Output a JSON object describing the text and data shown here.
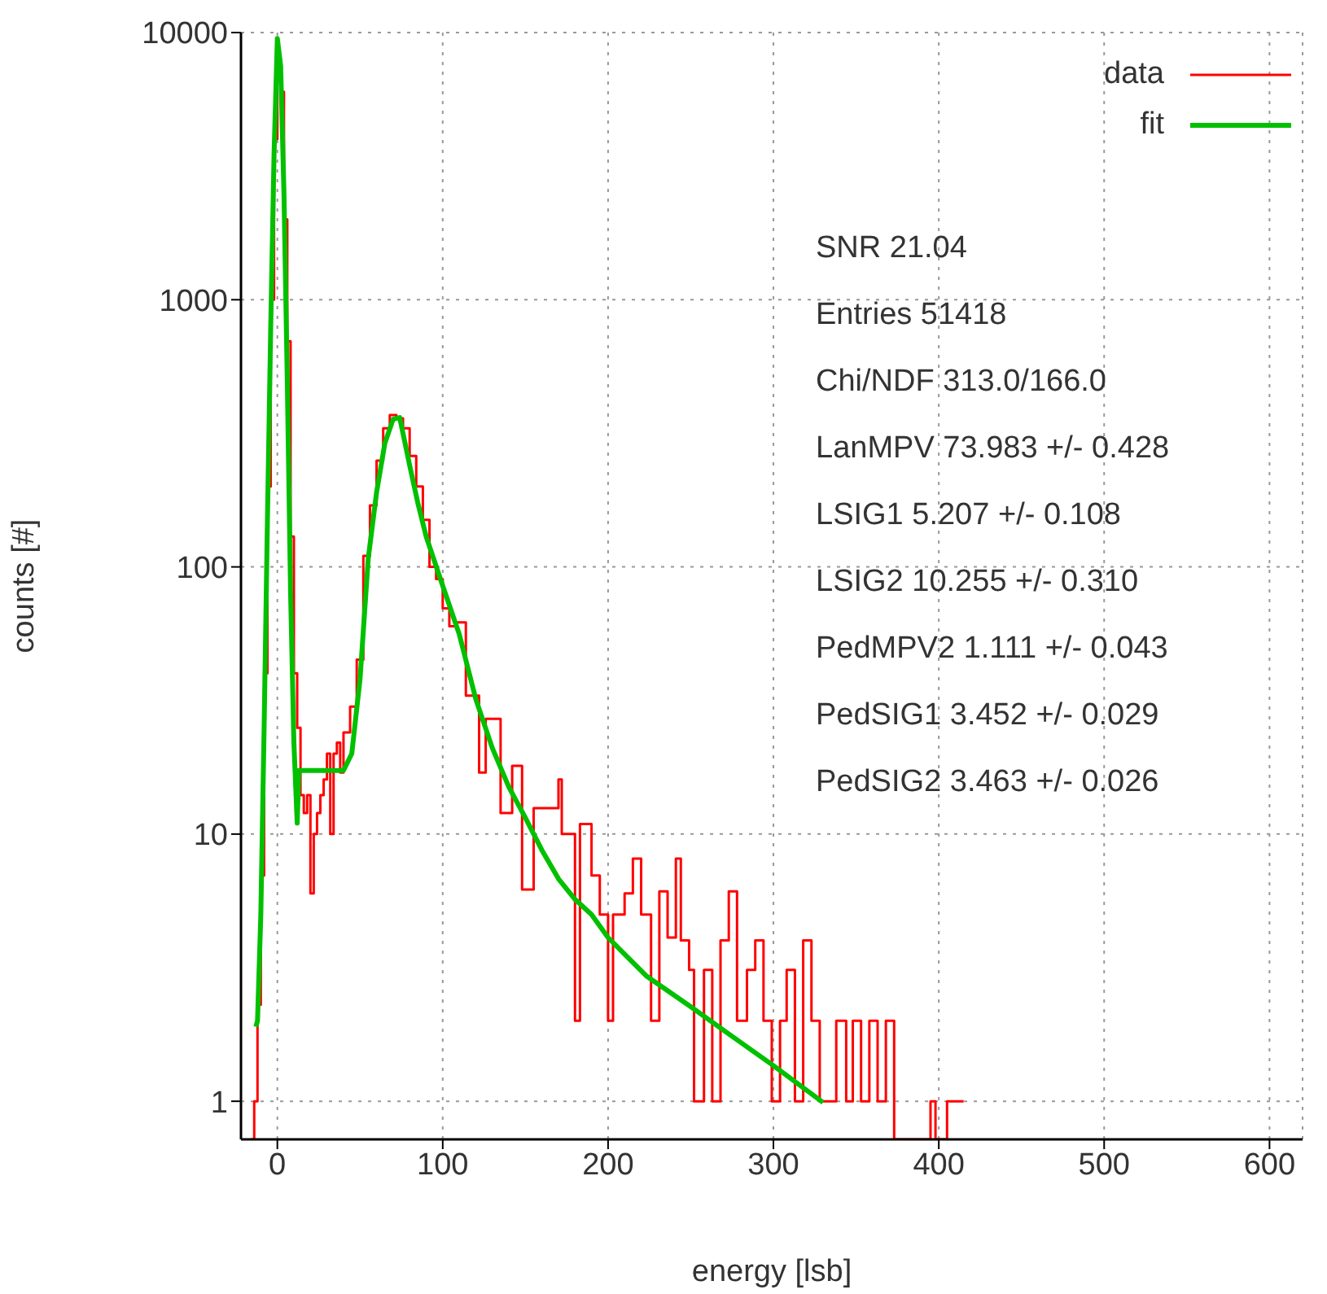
{
  "chart_data": {
    "type": "histogram",
    "xlabel": "energy [lsb]",
    "ylabel": "counts [#]",
    "xlim": [
      -22,
      620
    ],
    "xticks": [
      0,
      100,
      200,
      300,
      400,
      500,
      600
    ],
    "ylim": [
      0.72,
      10000
    ],
    "yticks": [
      1,
      10,
      100,
      1000,
      10000
    ],
    "log": "y",
    "grid": true,
    "legend": "top right",
    "annotations": [
      "SNR 21.04",
      "Entries 51418",
      "Chi/NDF 313.0/166.0",
      "LanMPV 73.983 +/- 0.428",
      "LSIG1 5.207 +/- 0.108",
      "LSIG2 10.255 +/- 0.310",
      "PedMPV2 1.111 +/- 0.043",
      "PedSIG1 3.452 +/- 0.029",
      "PedSIG2 3.463 +/- 0.026"
    ],
    "series": [
      {
        "name": "data",
        "type": "histogram",
        "color": "#ff0000",
        "bins": [
          -16,
          -14,
          -12,
          -10,
          -8,
          -6,
          -4,
          -2,
          0,
          2,
          4,
          6,
          8,
          10,
          12,
          14,
          16,
          18,
          20,
          22,
          24,
          26,
          28,
          30,
          32,
          34,
          36,
          38,
          40,
          44,
          48,
          52,
          56,
          60,
          64,
          68,
          72,
          76,
          80,
          84,
          88,
          92,
          96,
          100,
          104,
          108,
          114,
          122,
          126,
          135,
          142,
          148,
          155,
          170,
          172,
          180,
          183,
          190,
          195,
          200,
          203,
          210,
          215,
          220,
          226,
          231,
          236,
          241,
          244,
          249,
          252,
          258,
          263,
          268,
          273,
          278,
          284,
          289,
          294,
          299,
          304,
          308,
          313,
          318,
          323,
          328,
          338,
          344,
          348,
          353,
          358,
          363,
          368,
          373,
          395,
          398,
          405,
          415
        ],
        "values": [
          null,
          1,
          2.3,
          7,
          40,
          200,
          1000,
          4000,
          8000,
          6000,
          2000,
          700,
          130,
          40,
          25,
          14,
          12,
          14,
          6,
          10,
          12,
          14,
          16,
          20,
          10,
          20,
          22,
          17,
          24,
          30,
          45,
          110,
          170,
          250,
          330,
          370,
          360,
          330,
          260,
          200,
          150,
          100,
          90,
          70,
          60,
          62,
          33,
          17,
          27,
          12,
          18,
          6.2,
          12.5,
          16,
          10,
          2,
          10.9,
          7,
          5,
          2,
          5,
          6,
          8.1,
          5,
          2,
          6.1,
          4.1,
          8.1,
          4,
          3.1,
          1,
          3.1,
          1,
          4,
          6.1,
          2,
          3.1,
          4,
          2,
          1,
          2,
          3.1,
          1,
          4,
          2,
          1,
          2,
          1,
          2,
          1,
          2,
          1,
          2,
          null,
          1,
          null,
          1
        ]
      },
      {
        "name": "fit",
        "type": "line",
        "color": "#00c000",
        "x": [
          -13,
          -12,
          -10,
          -8,
          -6,
          -4,
          -2,
          0,
          2,
          4,
          6,
          8,
          10,
          12,
          13,
          40,
          45,
          50,
          55,
          60,
          65,
          70,
          74,
          80,
          85,
          90,
          100,
          110,
          120,
          130,
          140,
          150,
          160,
          170,
          180,
          190,
          200,
          223,
          250,
          275,
          300,
          330
        ],
        "values": [
          1.9,
          2,
          5,
          25,
          150,
          800,
          3500,
          9500,
          7500,
          2500,
          500,
          80,
          22,
          11,
          17.3,
          17.3,
          20,
          38,
          108,
          190,
          290,
          357,
          362,
          240,
          173,
          130,
          85,
          56,
          32,
          21,
          15,
          11.5,
          8.7,
          6.8,
          5.7,
          5,
          4.1,
          2.95,
          2.26,
          1.75,
          1.36,
          0.99
        ]
      }
    ]
  }
}
